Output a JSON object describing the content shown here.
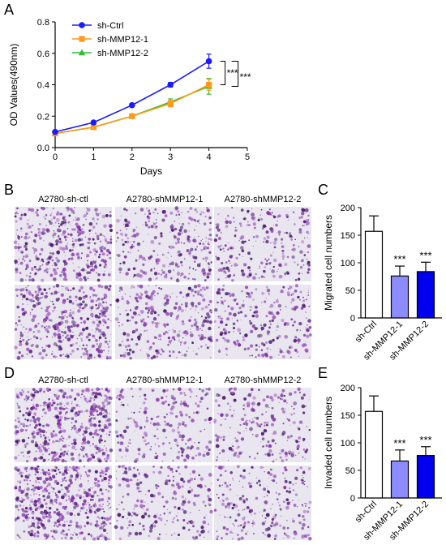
{
  "panels": {
    "A": "A",
    "B": "B",
    "C": "C",
    "D": "D",
    "E": "E"
  },
  "microscopy": {
    "migration_headers": [
      "A2780-sh-ctl",
      "A2780-shMMP12-1",
      "A2780-shMMP12-2"
    ],
    "invasion_headers": [
      "A2780-sh-ctl",
      "A2780-shMMP12-1",
      "A2780-shMMP12-2"
    ]
  },
  "colors": {
    "ctrl": "#1a1aff",
    "mmp1": "#ff9a1a",
    "mmp2": "#33bb33",
    "bar_ctrl": "#ffffff",
    "bar_mmp1": "#8c8cff",
    "bar_mmp2": "#0000ee",
    "stain": "#7a2ea0",
    "field": "#e9e6ef"
  },
  "chart_data": [
    {
      "id": "A",
      "type": "line",
      "xlabel": "Days",
      "ylabel": "OD Values(490nm)",
      "xlim": [
        0,
        5
      ],
      "ylim": [
        0,
        0.8
      ],
      "xticks": [
        "0",
        "1",
        "2",
        "3",
        "4",
        "5"
      ],
      "yticks": [
        "0.0",
        "0.2",
        "0.4",
        "0.6",
        "0.8"
      ],
      "legend_position": "top-left",
      "x": [
        0,
        1,
        2,
        3,
        4
      ],
      "series": [
        {
          "name": "sh-Ctrl",
          "values": [
            0.1,
            0.16,
            0.27,
            0.4,
            0.55
          ],
          "errors": [
            0.005,
            0.008,
            0.01,
            0.015,
            0.045
          ],
          "marker": "circle"
        },
        {
          "name": "sh-MMP12-1",
          "values": [
            0.09,
            0.13,
            0.2,
            0.28,
            0.4
          ],
          "errors": [
            0.005,
            0.008,
            0.012,
            0.02,
            0.035
          ],
          "marker": "square"
        },
        {
          "name": "sh-MMP12-2",
          "values": [
            0.09,
            0.13,
            0.2,
            0.29,
            0.39
          ],
          "errors": [
            0.005,
            0.008,
            0.012,
            0.02,
            0.05
          ],
          "marker": "triangle"
        }
      ],
      "annotations": [
        "***",
        "***"
      ]
    },
    {
      "id": "C",
      "type": "bar",
      "ylabel": "Migrated cell numbers",
      "ylim": [
        0,
        200
      ],
      "yticks": [
        "0",
        "50",
        "100",
        "150",
        "200"
      ],
      "categories": [
        "sh-Ctrl",
        "sh-MMP12-1",
        "sh-MMP12-2"
      ],
      "values": [
        157,
        76,
        84
      ],
      "errors": [
        28,
        18,
        17
      ],
      "annotations": [
        "",
        "***",
        "***"
      ]
    },
    {
      "id": "E",
      "type": "bar",
      "ylabel": "Invaded cell numbers",
      "ylim": [
        0,
        200
      ],
      "yticks": [
        "0",
        "50",
        "100",
        "150",
        "200"
      ],
      "categories": [
        "sh-Ctrl",
        "sh-MMP12-1",
        "sh-MMP12-2"
      ],
      "values": [
        157,
        67,
        77
      ],
      "errors": [
        28,
        20,
        16
      ],
      "annotations": [
        "",
        "***",
        "***"
      ]
    }
  ]
}
